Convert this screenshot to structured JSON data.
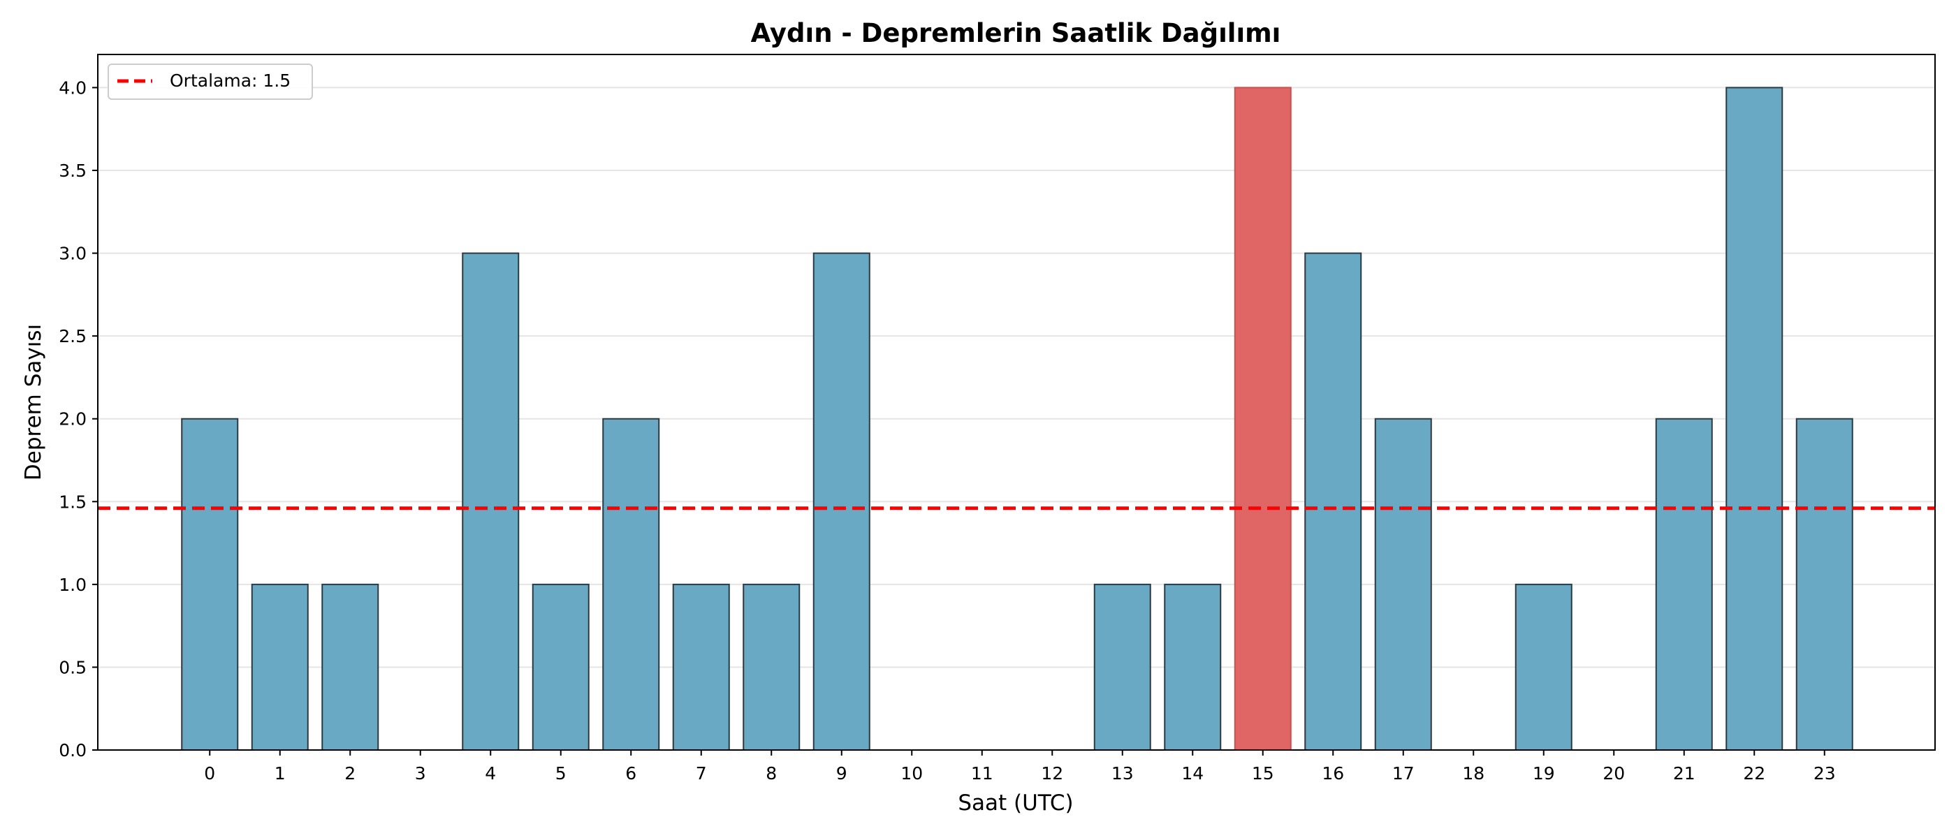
{
  "chart_data": {
    "type": "bar",
    "title": "Aydın - Depremlerin Saatlik Dağılımı",
    "xlabel": "Saat (UTC)",
    "ylabel": "Deprem Sayısı",
    "categories": [
      "0",
      "1",
      "2",
      "3",
      "4",
      "5",
      "6",
      "7",
      "8",
      "9",
      "10",
      "11",
      "12",
      "13",
      "14",
      "15",
      "16",
      "17",
      "18",
      "19",
      "20",
      "21",
      "22",
      "23"
    ],
    "values": [
      2,
      1,
      1,
      0,
      3,
      1,
      2,
      1,
      1,
      3,
      0,
      0,
      0,
      1,
      1,
      4,
      3,
      2,
      0,
      1,
      0,
      2,
      4,
      2
    ],
    "highlight_index": 15,
    "ylim": [
      0,
      4.2
    ],
    "yticks": [
      "0.0",
      "0.5",
      "1.0",
      "1.5",
      "2.0",
      "2.5",
      "3.0",
      "3.5",
      "4.0"
    ],
    "mean": {
      "value": 1.46,
      "label": "Ortalama: 1.5"
    },
    "legend_position": "top-left",
    "grid": "y",
    "colors": {
      "bar": "#6aa9c4",
      "highlight": "#e06666",
      "mean_line": "#ff0000",
      "edge": "#2b3a42"
    }
  }
}
